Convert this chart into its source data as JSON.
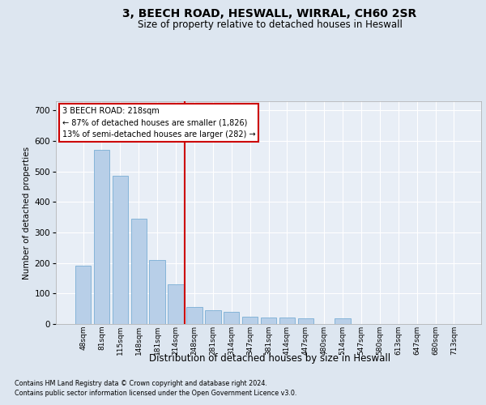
{
  "title": "3, BEECH ROAD, HESWALL, WIRRAL, CH60 2SR",
  "subtitle": "Size of property relative to detached houses in Heswall",
  "xlabel": "Distribution of detached houses by size in Heswall",
  "ylabel": "Number of detached properties",
  "footer_line1": "Contains HM Land Registry data © Crown copyright and database right 2024.",
  "footer_line2": "Contains public sector information licensed under the Open Government Licence v3.0.",
  "annotation_line1": "3 BEECH ROAD: 218sqm",
  "annotation_line2": "← 87% of detached houses are smaller (1,826)",
  "annotation_line3": "13% of semi-detached houses are larger (282) →",
  "bar_color": "#b8cfe8",
  "bar_edge_color": "#7aadd4",
  "redline_color": "#cc0000",
  "background_color": "#dde6f0",
  "plot_bg_color": "#e8eef6",
  "grid_color": "#ffffff",
  "categories": [
    "48sqm",
    "81sqm",
    "115sqm",
    "148sqm",
    "181sqm",
    "214sqm",
    "248sqm",
    "281sqm",
    "314sqm",
    "347sqm",
    "381sqm",
    "414sqm",
    "447sqm",
    "480sqm",
    "514sqm",
    "547sqm",
    "580sqm",
    "613sqm",
    "647sqm",
    "680sqm",
    "713sqm"
  ],
  "values": [
    190,
    570,
    485,
    345,
    210,
    130,
    55,
    45,
    40,
    25,
    20,
    20,
    18,
    0,
    18,
    0,
    0,
    0,
    0,
    0,
    0
  ],
  "redline_x": 5.5,
  "ylim": [
    0,
    730
  ],
  "yticks": [
    0,
    100,
    200,
    300,
    400,
    500,
    600,
    700
  ]
}
